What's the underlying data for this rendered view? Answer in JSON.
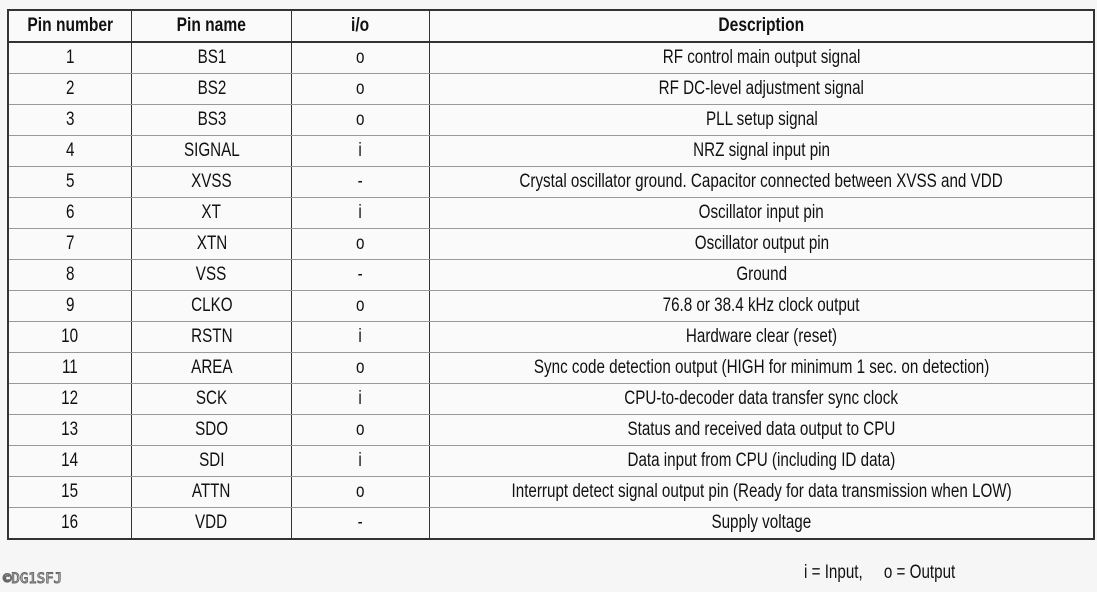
{
  "table": {
    "headers": [
      "Pin number",
      "Pin name",
      "i/o",
      "Description"
    ],
    "rows": [
      [
        "1",
        "BS1",
        "o",
        "RF control main output signal"
      ],
      [
        "2",
        "BS2",
        "o",
        "RF DC-level adjustment signal"
      ],
      [
        "3",
        "BS3",
        "o",
        "PLL setup signal"
      ],
      [
        "4",
        "SIGNAL",
        "i",
        "NRZ signal input pin"
      ],
      [
        "5",
        "XVSS",
        "-",
        "Crystal oscillator ground. Capacitor connected between XVSS and VDD"
      ],
      [
        "6",
        "XT",
        "i",
        "Oscillator input pin"
      ],
      [
        "7",
        "XTN",
        "o",
        "Oscillator output pin"
      ],
      [
        "8",
        "VSS",
        "-",
        "Ground"
      ],
      [
        "9",
        "CLKO",
        "o",
        "76.8 or 38.4 kHz clock output"
      ],
      [
        "10",
        "RSTN",
        "i",
        "Hardware clear (reset)"
      ],
      [
        "11",
        "AREA",
        "o",
        "Sync code detection output (HIGH for minimum 1 sec. on detection)"
      ],
      [
        "12",
        "SCK",
        "i",
        "CPU-to-decoder data transfer sync clock"
      ],
      [
        "13",
        "SDO",
        "o",
        "Status and received data output to CPU"
      ],
      [
        "14",
        "SDI",
        "i",
        "Data input from CPU (including ID data)"
      ],
      [
        "15",
        "ATTN",
        "o",
        "Interrupt detect signal output pin (Ready for data transmission when LOW)"
      ],
      [
        "16",
        "VDD",
        "-",
        "Supply voltage"
      ]
    ]
  },
  "legend": "i = Input,     o = Output",
  "watermark": "©DG1SFJ"
}
